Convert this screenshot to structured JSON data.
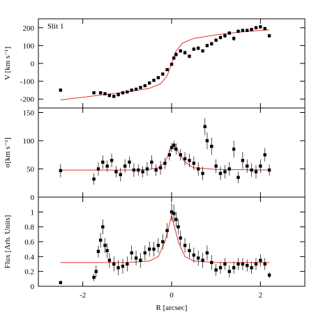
{
  "chart_data": [
    {
      "type": "errorbar",
      "annotation": "Slit 1",
      "ylabel": "V [km s⁻¹]",
      "ylim": [
        -250,
        250
      ],
      "yticks": [
        -200,
        -100,
        0,
        100,
        200
      ],
      "x": [
        -2.5,
        -1.75,
        -1.6,
        -1.5,
        -1.4,
        -1.3,
        -1.2,
        -1.1,
        -1.0,
        -0.9,
        -0.8,
        -0.7,
        -0.6,
        -0.5,
        -0.4,
        -0.3,
        -0.2,
        -0.1,
        0,
        0.05,
        0.1,
        0.2,
        0.3,
        0.4,
        0.5,
        0.6,
        0.7,
        0.8,
        0.9,
        1.0,
        1.1,
        1.2,
        1.3,
        1.4,
        1.5,
        1.6,
        1.7,
        1.8,
        1.9,
        2.0,
        2.1,
        2.2
      ],
      "values": [
        -150,
        -165,
        -165,
        -170,
        -180,
        -185,
        -175,
        -165,
        -160,
        -150,
        -145,
        -135,
        -125,
        -110,
        -95,
        -80,
        -60,
        -35,
        -5,
        30,
        50,
        70,
        60,
        40,
        80,
        85,
        70,
        100,
        110,
        130,
        145,
        155,
        170,
        140,
        180,
        185,
        185,
        190,
        200,
        205,
        195,
        155
      ],
      "errors": [
        10,
        8,
        8,
        8,
        10,
        8,
        12,
        10,
        8,
        8,
        10,
        8,
        8,
        10,
        8,
        8,
        10,
        8,
        8,
        10,
        12,
        10,
        12,
        10,
        10,
        12,
        10,
        10,
        12,
        10,
        10,
        12,
        10,
        15,
        10,
        8,
        8,
        8,
        10,
        10,
        10,
        10
      ],
      "color": "#000000",
      "model": {
        "x": [
          -2.5,
          -2,
          -1.5,
          -1,
          -0.5,
          -0.25,
          -0.1,
          0,
          0.1,
          0.25,
          0.5,
          1,
          1.5,
          2,
          2.2
        ],
        "values": [
          -205,
          -190,
          -175,
          -160,
          -140,
          -115,
          -70,
          0,
          70,
          115,
          140,
          160,
          175,
          185,
          188
        ],
        "color": "#e03030"
      }
    },
    {
      "type": "errorbar",
      "ylabel": "σ[km s⁻¹]",
      "ylim": [
        0,
        158
      ],
      "yticks": [
        0,
        50,
        100,
        150
      ],
      "x": [
        -2.5,
        -1.75,
        -1.65,
        -1.55,
        -1.45,
        -1.35,
        -1.25,
        -1.15,
        -1.05,
        -0.95,
        -0.85,
        -0.75,
        -0.65,
        -0.55,
        -0.45,
        -0.35,
        -0.25,
        -0.15,
        -0.05,
        0,
        0.05,
        0.1,
        0.2,
        0.3,
        0.4,
        0.5,
        0.6,
        0.7,
        0.75,
        0.8,
        0.9,
        1.0,
        1.1,
        1.2,
        1.3,
        1.4,
        1.5,
        1.6,
        1.7,
        1.8,
        1.9,
        2.0,
        2.1,
        2.2
      ],
      "values": [
        47,
        32,
        50,
        62,
        55,
        65,
        45,
        40,
        55,
        62,
        48,
        48,
        45,
        50,
        62,
        48,
        52,
        60,
        75,
        88,
        92,
        85,
        75,
        68,
        65,
        60,
        50,
        42,
        125,
        100,
        90,
        55,
        42,
        45,
        50,
        85,
        35,
        65,
        55,
        48,
        45,
        55,
        75,
        48
      ],
      "errors": [
        12,
        10,
        12,
        12,
        10,
        12,
        10,
        12,
        12,
        10,
        12,
        10,
        10,
        12,
        12,
        10,
        12,
        10,
        10,
        8,
        8,
        10,
        10,
        12,
        12,
        12,
        12,
        12,
        15,
        15,
        15,
        12,
        12,
        12,
        12,
        15,
        10,
        15,
        12,
        12,
        12,
        12,
        12,
        10
      ],
      "color": "#000000",
      "model": {
        "x": [
          -2.5,
          -1,
          -0.5,
          -0.3,
          -0.15,
          0,
          0.05,
          0.15,
          0.3,
          0.5,
          1,
          2.2
        ],
        "values": [
          48,
          48,
          49,
          52,
          62,
          88,
          92,
          80,
          62,
          52,
          49,
          48
        ],
        "color": "#e03030"
      }
    },
    {
      "type": "errorbar",
      "ylabel": "Flux [Arb. Units]",
      "xlabel": "R [arcsec]",
      "xlim": [
        -3,
        3
      ],
      "xticks": [
        -2,
        0,
        2
      ],
      "ylim": [
        0,
        1.2
      ],
      "yticks": [
        0,
        0.2,
        0.4,
        0.6,
        0.8,
        1
      ],
      "x": [
        -2.5,
        -1.75,
        -1.7,
        -1.65,
        -1.6,
        -1.55,
        -1.5,
        -1.45,
        -1.4,
        -1.3,
        -1.2,
        -1.1,
        -1.0,
        -0.9,
        -0.8,
        -0.7,
        -0.6,
        -0.5,
        -0.4,
        -0.3,
        -0.2,
        -0.1,
        0,
        0.05,
        0.1,
        0.15,
        0.2,
        0.3,
        0.4,
        0.5,
        0.6,
        0.7,
        0.8,
        0.9,
        1.0,
        1.1,
        1.2,
        1.3,
        1.4,
        1.5,
        1.6,
        1.7,
        1.8,
        1.9,
        2.0,
        2.1,
        2.2
      ],
      "values": [
        0.05,
        0.12,
        0.2,
        0.47,
        0.62,
        0.8,
        0.55,
        0.48,
        0.35,
        0.3,
        0.25,
        0.27,
        0.3,
        0.45,
        0.38,
        0.35,
        0.45,
        0.5,
        0.5,
        0.55,
        0.6,
        0.75,
        1.0,
        0.98,
        0.9,
        0.8,
        0.65,
        0.55,
        0.48,
        0.42,
        0.38,
        0.35,
        0.45,
        0.32,
        0.22,
        0.25,
        0.3,
        0.2,
        0.25,
        0.3,
        0.3,
        0.28,
        0.25,
        0.3,
        0.35,
        0.3,
        0.15
      ],
      "errors": [
        0.02,
        0.05,
        0.08,
        0.08,
        0.1,
        0.1,
        0.1,
        0.1,
        0.1,
        0.1,
        0.1,
        0.1,
        0.1,
        0.1,
        0.1,
        0.1,
        0.1,
        0.1,
        0.1,
        0.1,
        0.1,
        0.1,
        0.12,
        0.12,
        0.1,
        0.1,
        0.1,
        0.1,
        0.1,
        0.1,
        0.1,
        0.1,
        0.1,
        0.1,
        0.08,
        0.08,
        0.08,
        0.08,
        0.08,
        0.08,
        0.08,
        0.08,
        0.08,
        0.08,
        0.08,
        0.08,
        0.04
      ],
      "color": "#000000",
      "model": {
        "x": [
          -2.5,
          -1,
          -0.5,
          -0.3,
          -0.15,
          0,
          0.15,
          0.3,
          0.5,
          1,
          2.2
        ],
        "values": [
          0.32,
          0.32,
          0.34,
          0.4,
          0.6,
          0.95,
          0.6,
          0.4,
          0.34,
          0.32,
          0.32
        ],
        "color": "#e03030"
      }
    }
  ]
}
